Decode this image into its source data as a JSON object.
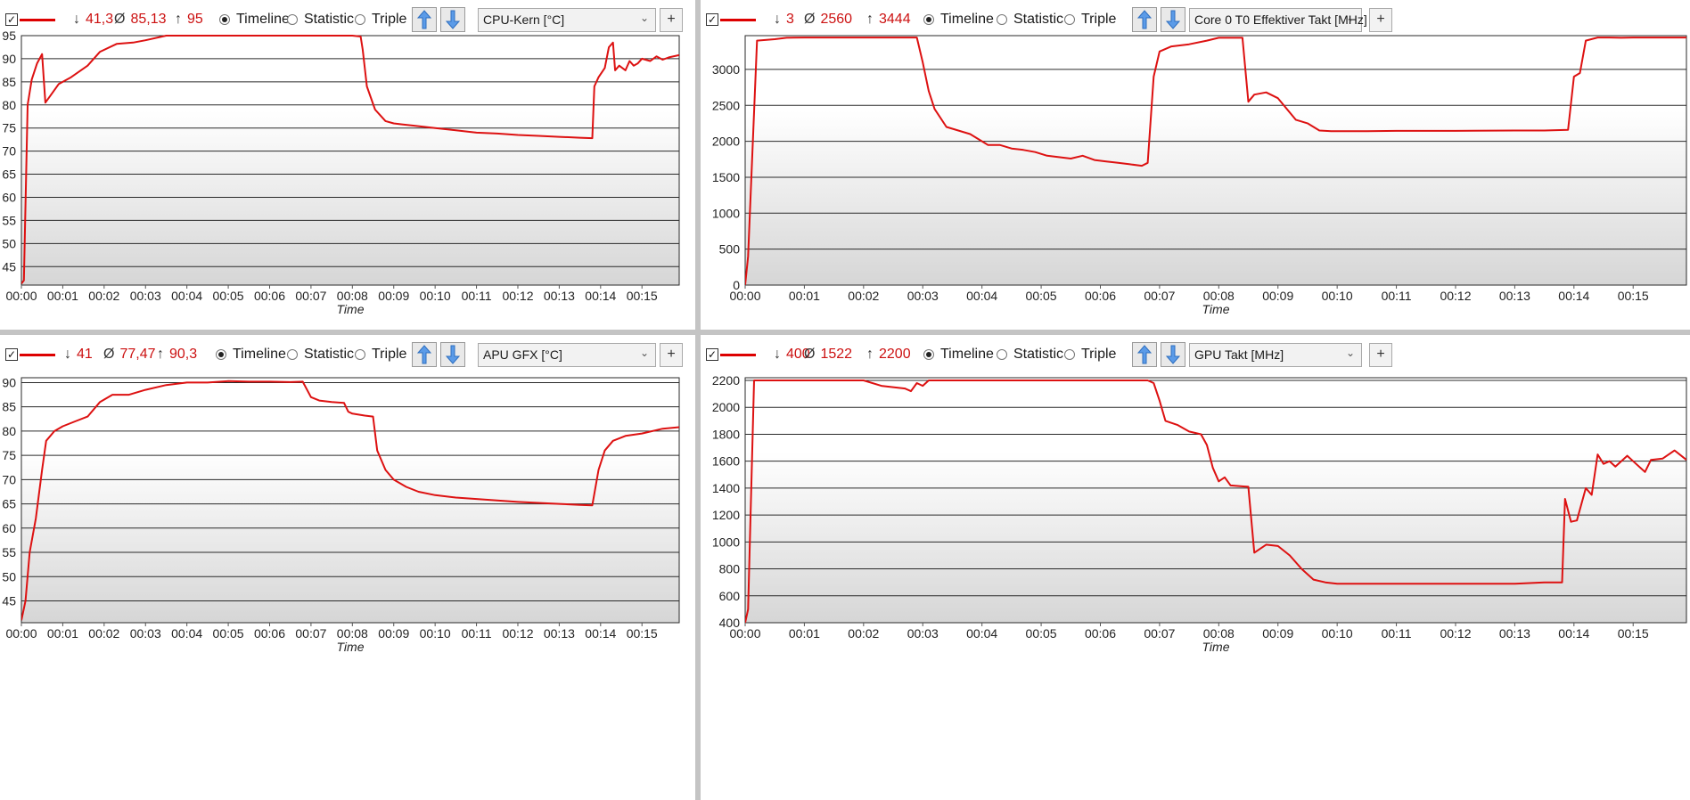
{
  "toolbar_labels": {
    "timeline": "Timeline",
    "statistic": "Statistic",
    "triple": "Triple",
    "add": "+",
    "dropdown_caret": "⌄"
  },
  "colors": {
    "line": "#dd1111",
    "grid": "#2a2a2a",
    "bg_top": "#ffffff",
    "bg_bottom": "#d6d6d6"
  },
  "panels": [
    {
      "stats": {
        "min_symbol": "↓",
        "min": "41,3",
        "avg_symbol": "Ø",
        "avg": "85,13",
        "max_symbol": "↑",
        "max": "95"
      },
      "selected_mode": "Timeline",
      "sensor": "CPU-Kern [°C]",
      "chart_data": {
        "type": "line",
        "xlabel": "Time",
        "x_ticks": [
          "00:00",
          "00:01",
          "00:02",
          "00:03",
          "00:04",
          "00:05",
          "00:06",
          "00:07",
          "00:08",
          "00:09",
          "00:10",
          "00:11",
          "00:12",
          "00:13",
          "00:14",
          "00:15"
        ],
        "y_ticks": [
          "95",
          "90",
          "85",
          "80",
          "75",
          "70",
          "65",
          "60",
          "55",
          "50",
          "45"
        ],
        "ylim": [
          41,
          95
        ],
        "xlim": [
          0,
          15.9
        ],
        "series": [
          {
            "x": [
              0,
              0.06,
              0.15,
              0.25,
              0.38,
              0.5,
              0.58,
              0.7,
              0.9,
              1.2,
              1.6,
              1.9,
              2.3,
              2.7,
              3.0,
              3.5,
              4.5,
              5.5,
              6.5,
              7.5,
              8.0,
              8.2,
              8.25,
              8.35,
              8.55,
              8.8,
              9.0,
              9.2,
              9.5,
              10,
              10.5,
              11,
              11.5,
              12,
              12.5,
              13,
              13.5,
              13.8,
              13.85,
              13.95,
              14.1,
              14.2,
              14.3,
              14.35,
              14.45,
              14.6,
              14.7,
              14.8,
              14.9,
              15,
              15.2,
              15.35,
              15.5,
              15.65,
              15.9
            ],
            "y": [
              41.3,
              42,
              80,
              85.5,
              89,
              91,
              80.5,
              82,
              84.5,
              86,
              88.5,
              91.5,
              93.2,
              93.5,
              94,
              95,
              95,
              95,
              95,
              95,
              95,
              94.8,
              92,
              84,
              79,
              76.5,
              76,
              75.8,
              75.5,
              75,
              74.5,
              74,
              73.8,
              73.5,
              73.3,
              73.1,
              72.9,
              72.8,
              84,
              86,
              88,
              92.5,
              93.5,
              87.5,
              88.5,
              87.5,
              89.5,
              88.5,
              89,
              90,
              89.5,
              90.5,
              89.8,
              90.3,
              90.8
            ]
          }
        ]
      }
    },
    {
      "stats": {
        "min_symbol": "↓",
        "min": "3",
        "avg_symbol": "Ø",
        "avg": "2560",
        "max_symbol": "↑",
        "max": "3444"
      },
      "selected_mode": "Timeline",
      "sensor": "Core 0 T0 Effektiver Takt [MHz]",
      "chart_data": {
        "type": "line",
        "xlabel": "Time",
        "x_ticks": [
          "00:00",
          "00:01",
          "00:02",
          "00:03",
          "00:04",
          "00:05",
          "00:06",
          "00:07",
          "00:08",
          "00:09",
          "00:10",
          "00:11",
          "00:12",
          "00:13",
          "00:14",
          "00:15"
        ],
        "y_ticks": [
          "3000",
          "2500",
          "2000",
          "1500",
          "1000",
          "500",
          "0"
        ],
        "ylim": [
          0,
          3470
        ],
        "xlim": [
          0,
          15.9
        ],
        "series": [
          {
            "x": [
              0,
              0.05,
              0.2,
              0.5,
              0.7,
              1,
              2,
              2.9,
              3.0,
              3.1,
              3.2,
              3.4,
              3.6,
              3.8,
              4.0,
              4.1,
              4.3,
              4.5,
              4.7,
              4.9,
              5.1,
              5.3,
              5.5,
              5.7,
              5.9,
              6.1,
              6.3,
              6.5,
              6.7,
              6.8,
              6.9,
              7.0,
              7.2,
              7.5,
              7.8,
              8.0,
              8.4,
              8.5,
              8.6,
              8.8,
              9.0,
              9.3,
              9.5,
              9.7,
              9.9,
              10.5,
              11,
              12,
              13,
              13.5,
              13.9,
              14.0,
              14.1,
              14.2,
              14.4,
              14.6,
              14.8,
              15,
              15.5,
              15.9
            ],
            "y": [
              3,
              400,
              3400,
              3420,
              3440,
              3444,
              3444,
              3444,
              3100,
              2700,
              2450,
              2200,
              2150,
              2100,
              2000,
              1950,
              1950,
              1900,
              1880,
              1850,
              1800,
              1780,
              1760,
              1800,
              1740,
              1720,
              1700,
              1680,
              1660,
              1700,
              2900,
              3250,
              3320,
              3350,
              3400,
              3440,
              3440,
              2550,
              2650,
              2680,
              2600,
              2300,
              2250,
              2150,
              2140,
              2140,
              2145,
              2145,
              2150,
              2150,
              2160,
              2900,
              2950,
              3400,
              3444,
              3444,
              3440,
              3444,
              3444,
              3444
            ]
          }
        ]
      }
    },
    {
      "stats": {
        "min_symbol": "↓",
        "min": "41",
        "avg_symbol": "Ø",
        "avg": "77,47",
        "max_symbol": "↑",
        "max": "90,3"
      },
      "selected_mode": "Timeline",
      "sensor": "APU GFX [°C]",
      "chart_data": {
        "type": "line",
        "xlabel": "Time",
        "x_ticks": [
          "00:00",
          "00:01",
          "00:02",
          "00:03",
          "00:04",
          "00:05",
          "00:06",
          "00:07",
          "00:08",
          "00:09",
          "00:10",
          "00:11",
          "00:12",
          "00:13",
          "00:14",
          "00:15"
        ],
        "y_ticks": [
          "90",
          "85",
          "80",
          "75",
          "70",
          "65",
          "60",
          "55",
          "50",
          "45"
        ],
        "ylim": [
          40.5,
          91
        ],
        "xlim": [
          0,
          15.9
        ],
        "series": [
          {
            "x": [
              0,
              0.1,
              0.2,
              0.35,
              0.5,
              0.6,
              0.8,
              1,
              1.3,
              1.6,
              1.9,
              2.2,
              2.6,
              3.0,
              3.5,
              4.0,
              4.5,
              5.0,
              5.5,
              6.0,
              6.5,
              6.8,
              7.0,
              7.2,
              7.5,
              7.8,
              7.9,
              8.0,
              8.3,
              8.5,
              8.6,
              8.8,
              9.0,
              9.3,
              9.6,
              10,
              10.5,
              11,
              11.5,
              12,
              12.5,
              13,
              13.5,
              13.8,
              13.95,
              14.1,
              14.3,
              14.6,
              15,
              15.5,
              15.9
            ],
            "y": [
              41,
              45,
              55,
              62,
              72,
              78,
              80,
              81,
              82,
              83,
              86,
              87.5,
              87.5,
              88.5,
              89.5,
              90,
              90,
              90.3,
              90.2,
              90.2,
              90.1,
              90.2,
              87,
              86.3,
              86,
              85.8,
              84,
              83.6,
              83.2,
              83,
              76,
              72,
              70,
              68.5,
              67.5,
              66.8,
              66.3,
              66,
              65.7,
              65.4,
              65.2,
              65.0,
              64.8,
              64.7,
              72,
              76,
              78,
              79,
              79.5,
              80.5,
              80.8
            ]
          }
        ]
      }
    },
    {
      "stats": {
        "min_symbol": "↓",
        "min": "400",
        "avg_symbol": "Ø",
        "avg": "1522",
        "max_symbol": "↑",
        "max": "2200"
      },
      "selected_mode": "Timeline",
      "sensor": "GPU Takt [MHz]",
      "chart_data": {
        "type": "line",
        "xlabel": "Time",
        "x_ticks": [
          "00:00",
          "00:01",
          "00:02",
          "00:03",
          "00:04",
          "00:05",
          "00:06",
          "00:07",
          "00:08",
          "00:09",
          "00:10",
          "00:11",
          "00:12",
          "00:13",
          "00:14",
          "00:15"
        ],
        "y_ticks": [
          "2200",
          "2000",
          "1800",
          "1600",
          "1400",
          "1200",
          "1000",
          "800",
          "600",
          "400"
        ],
        "ylim": [
          400,
          2220
        ],
        "xlim": [
          0,
          15.9
        ],
        "series": [
          {
            "x": [
              0,
              0.05,
              0.15,
              0.5,
              1,
              1.5,
              2.0,
              2.3,
              2.5,
              2.7,
              2.8,
              2.9,
              3.0,
              3.1,
              3.3,
              4,
              5,
              6,
              6.5,
              6.8,
              6.9,
              7.0,
              7.1,
              7.3,
              7.5,
              7.7,
              7.8,
              7.9,
              8.0,
              8.1,
              8.2,
              8.5,
              8.6,
              8.7,
              8.8,
              9.0,
              9.2,
              9.4,
              9.6,
              9.8,
              10,
              10.5,
              11,
              11.5,
              12,
              12.5,
              13,
              13.5,
              13.8,
              13.85,
              13.95,
              14.05,
              14.2,
              14.3,
              14.4,
              14.5,
              14.6,
              14.7,
              14.9,
              15,
              15.2,
              15.3,
              15.5,
              15.7,
              15.9
            ],
            "y": [
              400,
              500,
              2200,
              2200,
              2200,
              2200,
              2200,
              2160,
              2150,
              2140,
              2120,
              2180,
              2160,
              2200,
              2200,
              2200,
              2200,
              2200,
              2200,
              2200,
              2180,
              2050,
              1900,
              1870,
              1820,
              1800,
              1720,
              1550,
              1450,
              1480,
              1420,
              1410,
              920,
              950,
              980,
              970,
              900,
              800,
              720,
              700,
              690,
              690,
              690,
              690,
              690,
              690,
              690,
              700,
              700,
              1320,
              1150,
              1160,
              1400,
              1350,
              1650,
              1580,
              1600,
              1560,
              1640,
              1600,
              1520,
              1610,
              1620,
              1680,
              1610
            ]
          }
        ]
      }
    }
  ]
}
